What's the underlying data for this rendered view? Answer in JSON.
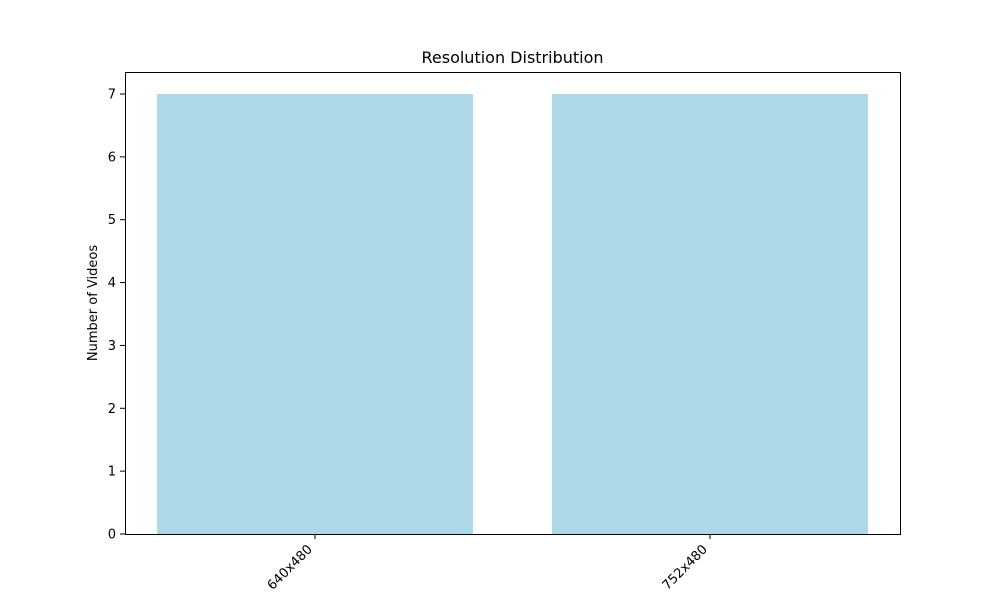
{
  "chart_data": {
    "type": "bar",
    "title": "Resolution Distribution",
    "xlabel": "",
    "ylabel": "Number of Videos",
    "categories": [
      "640x480",
      "752x480"
    ],
    "values": [
      7,
      7
    ],
    "ylim": [
      0,
      7.35
    ],
    "yticks": [
      0,
      1,
      2,
      3,
      4,
      5,
      6,
      7
    ],
    "bar_color": "#add8e6",
    "grid": false,
    "legend": "none",
    "xtick_rotation": "45 degrees"
  }
}
